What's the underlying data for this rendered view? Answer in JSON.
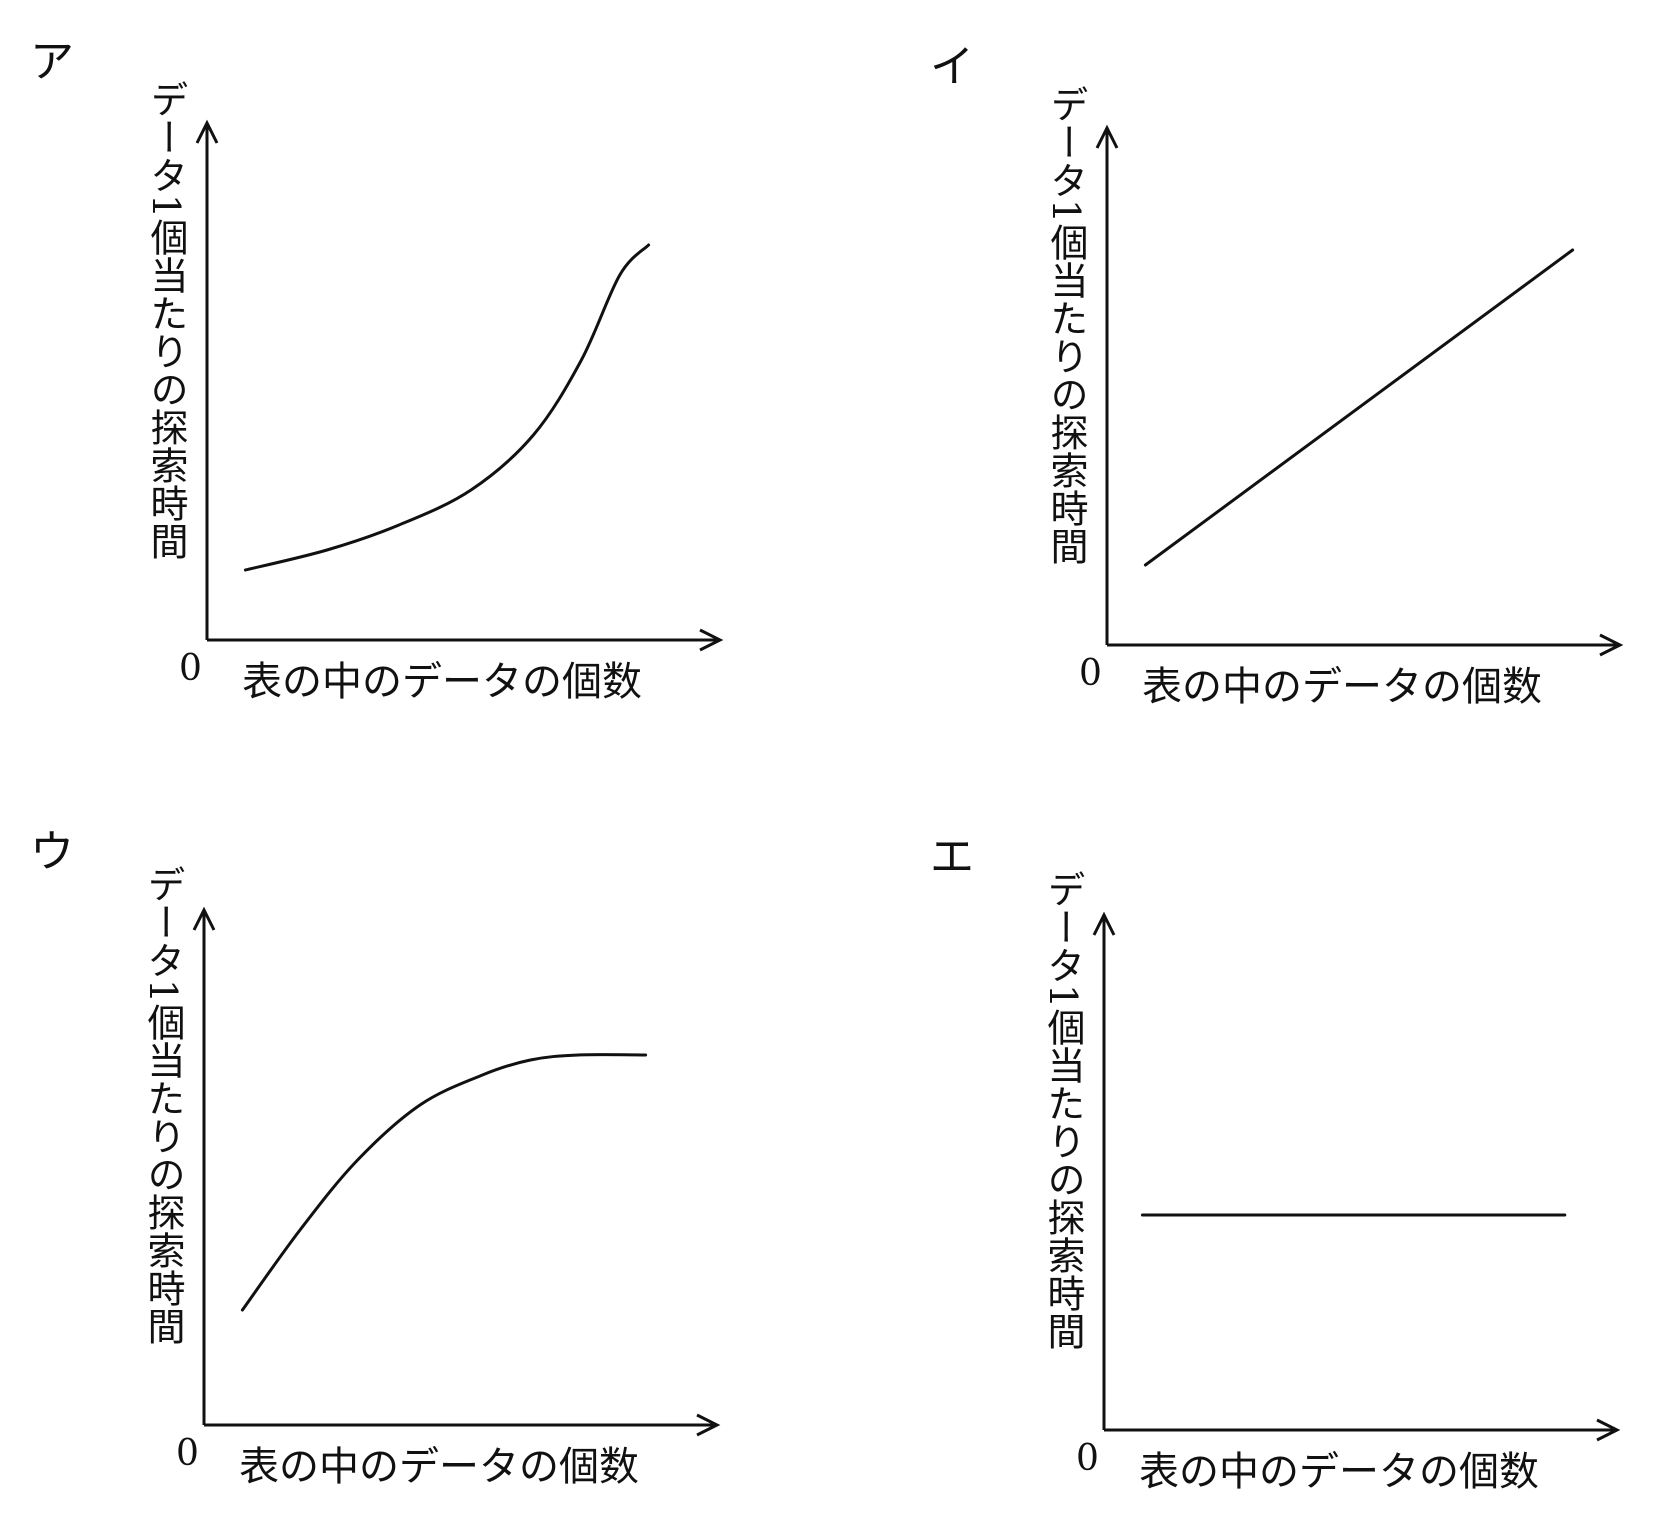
{
  "chart_data": [
    {
      "type": "line",
      "panel": "ア",
      "xlabel": "表の中のデータの個数",
      "ylabel": "データ1個当たりの探索時間",
      "origin_label": "0",
      "xlim": [
        0,
        10
      ],
      "ylim": [
        0,
        10
      ],
      "series": [
        {
          "x": [
            0.8,
            2.5,
            4.0,
            5.5,
            6.8,
            7.8,
            8.6,
            9.2
          ],
          "y": [
            1.4,
            1.8,
            2.3,
            3.0,
            4.1,
            5.6,
            7.3,
            7.9
          ]
        }
      ]
    },
    {
      "type": "line",
      "panel": "イ",
      "xlabel": "表の中のデータの個数",
      "ylabel": "データ1個当たりの探索時間",
      "origin_label": "0",
      "xlim": [
        0,
        10
      ],
      "ylim": [
        0,
        10
      ],
      "series": [
        {
          "x": [
            0.8,
            9.7
          ],
          "y": [
            1.6,
            7.9
          ]
        }
      ]
    },
    {
      "type": "line",
      "panel": "ウ",
      "xlabel": "表の中のデータの個数",
      "ylabel": "データ1個当たりの探索時間",
      "origin_label": "0",
      "xlim": [
        0,
        10
      ],
      "ylim": [
        0,
        10
      ],
      "series": [
        {
          "x": [
            0.8,
            2.0,
            3.2,
            4.5,
            5.8,
            6.8,
            7.8,
            9.2
          ],
          "y": [
            2.3,
            3.9,
            5.3,
            6.4,
            7.0,
            7.3,
            7.4,
            7.4
          ]
        }
      ]
    },
    {
      "type": "line",
      "panel": "エ",
      "xlabel": "表の中のデータの個数",
      "ylabel": "データ1個当たりの探索時間",
      "origin_label": "0",
      "xlim": [
        0,
        10
      ],
      "ylim": [
        0,
        10
      ],
      "series": [
        {
          "x": [
            0.8,
            9.6
          ],
          "y": [
            4.3,
            4.3
          ]
        }
      ]
    }
  ]
}
